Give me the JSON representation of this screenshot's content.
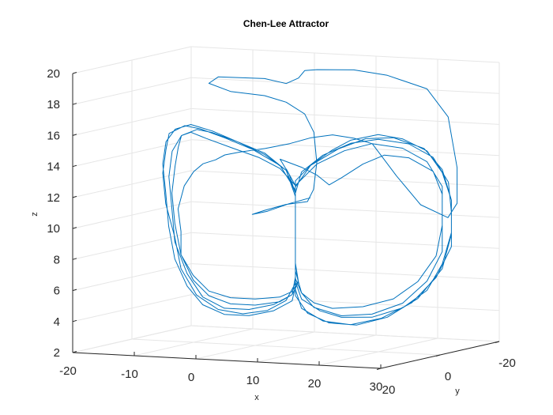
{
  "chart_data": {
    "type": "line",
    "title": "Chen-Lee Attractor",
    "xlabel": "x",
    "ylabel": "y",
    "zlabel": "z",
    "projection": "3d",
    "grid": true,
    "legend": "none",
    "xlim": [
      -20,
      30
    ],
    "ylim": [
      -20,
      20
    ],
    "zlim": [
      2,
      20
    ],
    "x_ticks": [
      "-20",
      "-10",
      "0",
      "10",
      "20",
      "30"
    ],
    "y_ticks": [
      "-20",
      "0",
      "20"
    ],
    "z_ticks": [
      "2",
      "4",
      "6",
      "8",
      "10",
      "12",
      "14",
      "16",
      "18",
      "20"
    ],
    "series": [
      {
        "color": "#0072BD",
        "points": [
          [
            8,
            -2,
            11.6
          ],
          [
            5,
            -1,
            11.2
          ],
          [
            2,
            0,
            10.7
          ],
          [
            0,
            1,
            10.5
          ],
          [
            2,
            1,
            10.8
          ],
          [
            5,
            0,
            11.2
          ],
          [
            8,
            -1,
            11.4
          ],
          [
            9,
            -1,
            12.2
          ],
          [
            10,
            0,
            14
          ],
          [
            10,
            1,
            16
          ],
          [
            9,
            2,
            17.2
          ],
          [
            6,
            2,
            17.9
          ],
          [
            2,
            1,
            18.2
          ],
          [
            -4,
            0,
            18.3
          ],
          [
            -8,
            -1,
            18.7
          ],
          [
            -6,
            0,
            19.2
          ],
          [
            2,
            1,
            19.3
          ],
          [
            6,
            2,
            19.1
          ],
          [
            8,
            2,
            19.5
          ],
          [
            9,
            2,
            20
          ],
          [
            11,
            2,
            20.1
          ],
          [
            16,
            0,
            20.1
          ],
          [
            20,
            -3,
            19.7
          ],
          [
            25,
            -6,
            18.8
          ],
          [
            27,
            -9,
            16.9
          ],
          [
            27,
            -12,
            13.5
          ],
          [
            27,
            -12,
            11.2
          ],
          [
            26,
            -11,
            10.3
          ],
          [
            23,
            -8,
            11.2
          ],
          [
            21,
            -4,
            13.2
          ],
          [
            20,
            -2,
            14.3
          ],
          [
            19,
            0,
            15.4
          ],
          [
            17,
            2,
            15.8
          ],
          [
            14,
            3,
            16
          ],
          [
            11,
            4,
            15.8
          ],
          [
            8,
            5,
            15.4
          ],
          [
            4,
            5,
            15
          ],
          [
            0,
            5,
            14.7
          ],
          [
            -3,
            4,
            14.4
          ],
          [
            -5,
            3,
            14
          ],
          [
            -8,
            1,
            13.6
          ],
          [
            -10,
            0,
            13
          ],
          [
            -12,
            -1,
            12
          ],
          [
            -13,
            -1,
            10.5
          ],
          [
            -13,
            -2,
            9
          ],
          [
            -13,
            -2,
            7.5
          ],
          [
            -11,
            -2,
            6.2
          ],
          [
            -8,
            -1,
            5.3
          ],
          [
            -4,
            0,
            5
          ],
          [
            0,
            0,
            5
          ],
          [
            4,
            0,
            5.2
          ],
          [
            6,
            0,
            5.6
          ],
          [
            7,
            0,
            6.3
          ],
          [
            7,
            1,
            7.5
          ],
          [
            7,
            1,
            9
          ],
          [
            7,
            1,
            10.5
          ],
          [
            7,
            1,
            12
          ],
          [
            6,
            1,
            13.2
          ],
          [
            5,
            2,
            14.2
          ],
          [
            8,
            1,
            13.7
          ],
          [
            10,
            0,
            13.2
          ],
          [
            12,
            0,
            12.6
          ],
          [
            14,
            0,
            13.1
          ],
          [
            17,
            -1,
            14
          ],
          [
            20,
            -2,
            14.6
          ],
          [
            23,
            -4,
            14.4
          ],
          [
            26,
            -6,
            13.5
          ],
          [
            27,
            -7,
            12
          ],
          [
            27,
            -7,
            10
          ],
          [
            26,
            -7,
            8
          ],
          [
            24,
            -5,
            6.4
          ],
          [
            21,
            -3,
            5.3
          ],
          [
            17,
            -1,
            4.8
          ],
          [
            13,
            1,
            4.7
          ],
          [
            10,
            1,
            5
          ],
          [
            8,
            1,
            5.6
          ],
          [
            7,
            1,
            6.5
          ],
          [
            7,
            1,
            8
          ],
          [
            7,
            1,
            10
          ],
          [
            7,
            1,
            11.5
          ],
          [
            7,
            1,
            12.5
          ],
          [
            5,
            2,
            13.6
          ],
          [
            2,
            3,
            14.3
          ],
          [
            -2,
            4,
            14.9
          ],
          [
            -6,
            4,
            15.4
          ],
          [
            -9,
            3,
            15.7
          ],
          [
            -11,
            2,
            15.4
          ],
          [
            -12,
            1,
            14.6
          ],
          [
            -13,
            0,
            13.3
          ],
          [
            -14,
            -1,
            11.5
          ],
          [
            -14,
            -2,
            9.5
          ],
          [
            -13,
            -2,
            7.5
          ],
          [
            -11,
            -2,
            5.9
          ],
          [
            -8,
            -1,
            5
          ],
          [
            -4,
            0,
            4.6
          ],
          [
            0,
            0,
            4.6
          ],
          [
            4,
            0,
            4.9
          ],
          [
            6,
            0,
            5.4
          ],
          [
            7,
            0,
            6.2
          ],
          [
            7,
            1,
            7.5
          ],
          [
            7,
            1,
            9.5
          ],
          [
            7,
            1,
            11.5
          ],
          [
            7,
            1,
            12.8
          ],
          [
            9,
            0,
            13.8
          ],
          [
            12,
            -1,
            14.8
          ],
          [
            15,
            -1,
            15.5
          ],
          [
            19,
            -2,
            15.9
          ],
          [
            22,
            -4,
            15.6
          ],
          [
            25,
            -6,
            14.8
          ],
          [
            27,
            -7,
            13.4
          ],
          [
            28,
            -8,
            11.6
          ],
          [
            28,
            -8,
            9.5
          ],
          [
            27,
            -7,
            7.5
          ],
          [
            25,
            -6,
            5.8
          ],
          [
            22,
            -4,
            4.7
          ],
          [
            18,
            -2,
            4.1
          ],
          [
            14,
            0,
            4.1
          ],
          [
            11,
            1,
            4.5
          ],
          [
            8,
            1,
            5.2
          ],
          [
            7,
            1,
            6.3
          ],
          [
            7,
            1,
            8
          ],
          [
            7,
            1,
            10
          ],
          [
            7,
            1,
            12
          ],
          [
            6,
            2,
            13.5
          ],
          [
            3,
            3,
            14.5
          ],
          [
            -1,
            4,
            15.3
          ],
          [
            -5,
            4,
            15.9
          ],
          [
            -9,
            3,
            16.2
          ],
          [
            -12,
            2,
            15.8
          ],
          [
            -14,
            1,
            14.9
          ],
          [
            -15,
            0,
            13.4
          ],
          [
            -15,
            -1,
            11.5
          ],
          [
            -15,
            -2,
            9.3
          ],
          [
            -14,
            -2,
            7.2
          ],
          [
            -12,
            -2,
            5.5
          ],
          [
            -9,
            -1,
            4.4
          ],
          [
            -5,
            0,
            3.9
          ],
          [
            -1,
            0,
            3.9
          ],
          [
            3,
            0,
            4.3
          ],
          [
            6,
            0,
            5
          ],
          [
            7,
            1,
            6
          ],
          [
            7,
            1,
            7.8
          ],
          [
            7,
            1,
            10
          ],
          [
            7,
            1,
            12
          ],
          [
            8,
            1,
            13.4
          ],
          [
            11,
            0,
            14.5
          ],
          [
            15,
            -1,
            15.3
          ],
          [
            19,
            -2,
            15.6
          ],
          [
            23,
            -4,
            15.3
          ],
          [
            26,
            -6,
            14.4
          ],
          [
            28,
            -7,
            12.8
          ],
          [
            28,
            -8,
            10.8
          ],
          [
            28,
            -8,
            8.6
          ],
          [
            26,
            -7,
            6.6
          ],
          [
            23,
            -5,
            5
          ],
          [
            19,
            -3,
            4
          ],
          [
            15,
            -1,
            3.6
          ],
          [
            11,
            0,
            3.8
          ],
          [
            8,
            1,
            4.6
          ],
          [
            7,
            1,
            5.8
          ],
          [
            7,
            1,
            7.8
          ],
          [
            7,
            1,
            10
          ],
          [
            7,
            1,
            12.2
          ],
          [
            5,
            2,
            13.8
          ],
          [
            1,
            3,
            14.8
          ],
          [
            -3,
            4,
            15.5
          ],
          [
            -7,
            4,
            16
          ],
          [
            -10,
            3,
            16.1
          ],
          [
            -13,
            2,
            15.5
          ],
          [
            -14,
            1,
            14.4
          ],
          [
            -15,
            0,
            12.8
          ],
          [
            -15,
            -1,
            10.8
          ],
          [
            -14,
            -2,
            8.6
          ],
          [
            -13,
            -2,
            6.6
          ],
          [
            -10,
            -1,
            5
          ],
          [
            -6,
            0,
            4.2
          ],
          [
            -2,
            0,
            4
          ],
          [
            2,
            0,
            4.3
          ],
          [
            5,
            0,
            5
          ],
          [
            7,
            1,
            6.2
          ],
          [
            7,
            1,
            8.2
          ],
          [
            7,
            1,
            10.5
          ],
          [
            7,
            1,
            12.4
          ],
          [
            9,
            0,
            13.8
          ],
          [
            13,
            -1,
            14.9
          ],
          [
            17,
            -2,
            15.6
          ],
          [
            21,
            -3,
            15.7
          ],
          [
            25,
            -5,
            15
          ],
          [
            27,
            -7,
            13.6
          ],
          [
            28,
            -8,
            11.6
          ],
          [
            28,
            -8,
            9.4
          ],
          [
            27,
            -7,
            7.2
          ],
          [
            24,
            -5,
            5.3
          ],
          [
            20,
            -3,
            4.1
          ],
          [
            16,
            -1,
            3.6
          ],
          [
            12,
            0,
            3.7
          ],
          [
            9,
            1,
            4.3
          ],
          [
            7,
            1,
            5.4
          ],
          [
            7,
            1,
            7.2
          ],
          [
            7,
            1,
            9.5
          ],
          [
            7,
            1,
            11.8
          ],
          [
            6,
            2,
            13.5
          ],
          [
            3,
            3,
            14.6
          ],
          [
            -1,
            4,
            15.3
          ],
          [
            -5,
            4,
            15.8
          ],
          [
            -8,
            3,
            15.9
          ],
          [
            -11,
            2,
            15.4
          ],
          [
            -13,
            1,
            14.3
          ],
          [
            -14,
            0,
            12.6
          ],
          [
            -14,
            -1,
            10.5
          ],
          [
            -14,
            -2,
            8.3
          ],
          [
            -12,
            -2,
            6.3
          ],
          [
            -9,
            -1,
            4.9
          ],
          [
            -5,
            0,
            4.3
          ],
          [
            -1,
            0,
            4.3
          ],
          [
            3,
            0,
            4.7
          ],
          [
            6,
            0,
            5.4
          ],
          [
            7,
            1,
            6.6
          ],
          [
            7,
            1,
            8.6
          ],
          [
            7,
            1,
            10.8
          ],
          [
            7,
            1,
            12.5
          ],
          [
            10,
            0,
            13.9
          ],
          [
            14,
            -1,
            14.8
          ],
          [
            18,
            -2,
            15.3
          ],
          [
            22,
            -4,
            15
          ],
          [
            25,
            -6,
            14.1
          ],
          [
            27,
            -7,
            12.5
          ],
          [
            27,
            -7,
            10.4
          ],
          [
            27,
            -7,
            8.3
          ],
          [
            25,
            -6,
            6.4
          ],
          [
            22,
            -4,
            5
          ],
          [
            18,
            -2,
            4.3
          ],
          [
            14,
            0,
            4.2
          ],
          [
            10,
            1,
            4.7
          ],
          [
            8,
            1,
            5.6
          ],
          [
            7,
            1,
            7
          ],
          [
            7,
            1,
            9
          ],
          [
            7,
            1,
            11
          ],
          [
            7,
            1,
            12.5
          ],
          [
            6,
            2,
            13.6
          ]
        ]
      }
    ]
  }
}
